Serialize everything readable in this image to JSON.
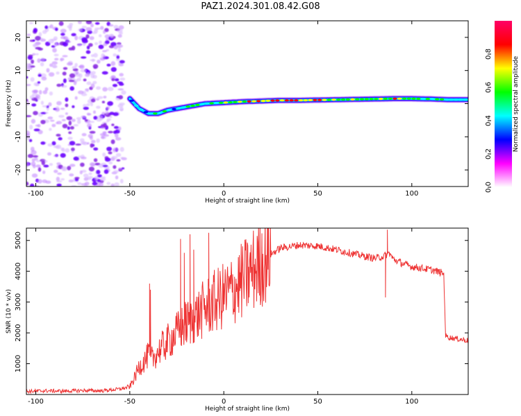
{
  "title": "PAZ1.2024.301.08.42.G08",
  "chart_data": [
    {
      "type": "heatmap",
      "name": "spectrogram",
      "xlabel": "Height of straight line (km)",
      "ylabel": "Frequency (Hz)",
      "xlim": [
        -105,
        130
      ],
      "ylim": [
        -25,
        25
      ],
      "xticks": [
        -100,
        -50,
        0,
        50,
        100
      ],
      "yticks": [
        -20,
        -10,
        0,
        10,
        20
      ],
      "colorbar": {
        "label": "Normalized spectral amplitude",
        "range": [
          0,
          1
        ],
        "ticks": [
          0.0,
          0.2,
          0.4,
          0.6,
          0.8
        ],
        "tick_labels": [
          "0.0",
          "0.2",
          "0.4",
          "0.6",
          "0.8"
        ],
        "colors": [
          "#ffffff",
          "#ff00ff",
          "#0000ff",
          "#00ffff",
          "#00ff00",
          "#ffff00",
          "#ff0000",
          "#ff0066"
        ]
      },
      "ridge": {
        "x": [
          -50,
          -45,
          -40,
          -35,
          -30,
          -20,
          -10,
          0,
          10,
          20,
          30,
          40,
          50,
          60,
          70,
          80,
          90,
          100,
          110,
          120,
          130
        ],
        "y": [
          1.5,
          -1.5,
          -3,
          -3,
          -2,
          -1,
          0,
          0.3,
          0.6,
          0.8,
          1,
          1,
          1.1,
          1.2,
          1.3,
          1.4,
          1.5,
          1.5,
          1.4,
          1.2,
          1.2
        ],
        "amplitude": [
          0.35,
          0.45,
          0.45,
          0.5,
          0.5,
          0.55,
          0.6,
          0.65,
          0.75,
          0.85,
          0.95,
          0.9,
          0.85,
          0.7,
          0.65,
          0.7,
          0.75,
          0.7,
          0.6,
          0.55,
          0.5
        ]
      },
      "noise_region": {
        "x_range": [
          -105,
          -53
        ],
        "y_range": [
          -25,
          25
        ],
        "amplitude": [
          0.1,
          0.3
        ]
      }
    },
    {
      "type": "line",
      "name": "snr",
      "xlabel": "Height of straight line (km)",
      "ylabel": "SNR (10 * v/v)",
      "xlim": [
        -105,
        130
      ],
      "ylim": [
        0,
        5400
      ],
      "xticks": [
        -100,
        -50,
        0,
        50,
        100
      ],
      "yticks": [
        1000,
        2000,
        3000,
        4000,
        5000
      ],
      "color": "#ee3333",
      "x": [
        -105,
        -95,
        -85,
        -75,
        -65,
        -55,
        -50,
        -47,
        -45,
        -42,
        -40,
        -38,
        -35,
        -30,
        -25,
        -20,
        -15,
        -10,
        -5,
        0,
        5,
        10,
        15,
        20,
        25,
        30,
        35,
        40,
        50,
        60,
        70,
        80,
        85,
        88,
        90,
        95,
        100,
        110,
        116,
        117,
        118,
        120,
        125,
        130
      ],
      "y": [
        100,
        120,
        110,
        130,
        120,
        180,
        250,
        600,
        900,
        1100,
        1300,
        1150,
        1400,
        1700,
        2000,
        2300,
        2500,
        2800,
        3000,
        3200,
        3400,
        3700,
        4000,
        4300,
        4550,
        4750,
        4800,
        4850,
        4820,
        4700,
        4550,
        4420,
        4480,
        4600,
        4400,
        4250,
        4150,
        4050,
        3950,
        3900,
        1900,
        1850,
        1800,
        1750
      ],
      "spikes": [
        {
          "x": -39.5,
          "y": 3600
        },
        {
          "x": -39,
          "y": 3400
        },
        {
          "x": -23,
          "y": 5050
        },
        {
          "x": -21,
          "y": 4600
        },
        {
          "x": -18,
          "y": 5200
        },
        {
          "x": -16,
          "y": 4700
        },
        {
          "x": -8,
          "y": 5250
        },
        {
          "x": 87,
          "y": 5350
        },
        {
          "x": 86,
          "y": 3150
        }
      ]
    }
  ]
}
